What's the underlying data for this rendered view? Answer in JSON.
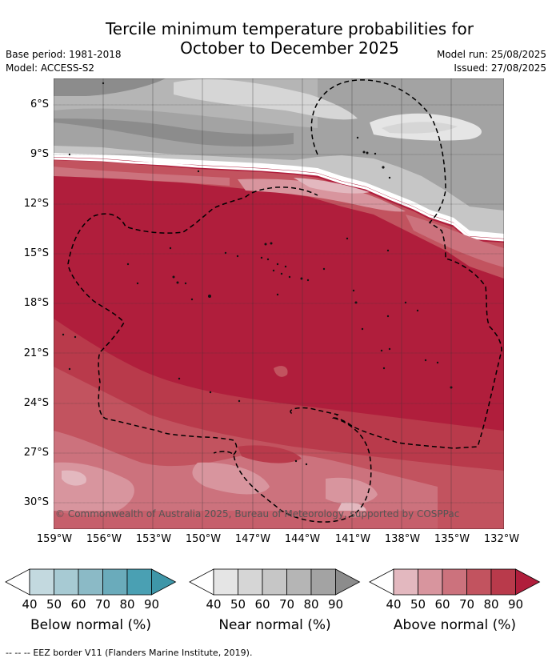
{
  "header": {
    "title_line1": "Tercile minimum temperature probabilities for",
    "title_line2": "October to December 2025",
    "base_period": "Base period: 1981-2018",
    "model": "Model: ACCESS-S2",
    "model_run": "Model run: 25/08/2025",
    "issued": "Issued: 27/08/2025"
  },
  "map": {
    "lat_labels": [
      "6°S",
      "9°S",
      "12°S",
      "15°S",
      "18°S",
      "21°S",
      "24°S",
      "27°S",
      "30°S"
    ],
    "lon_labels": [
      "159°W",
      "156°W",
      "153°W",
      "150°W",
      "147°W",
      "144°W",
      "141°W",
      "138°W",
      "135°W",
      "132°W"
    ],
    "copyright": "© Commonwealth of Australia 2025, Bureau of Meteorology, supported by COSPPac"
  },
  "legends": [
    {
      "title": "Below normal (%)",
      "ticks": [
        "40",
        "50",
        "60",
        "70",
        "80",
        "90"
      ],
      "colors": [
        "#ffffff",
        "#c3d9df",
        "#a7cad3",
        "#8bbac6",
        "#6aabbb",
        "#4aa0b3",
        "#3e96a8"
      ]
    },
    {
      "title": "Near normal (%)",
      "ticks": [
        "40",
        "50",
        "60",
        "70",
        "80",
        "90"
      ],
      "colors": [
        "#ffffff",
        "#e5e5e5",
        "#d6d6d6",
        "#c6c6c6",
        "#b5b5b5",
        "#a3a3a3",
        "#8c8c8c"
      ]
    },
    {
      "title": "Above normal (%)",
      "ticks": [
        "40",
        "50",
        "60",
        "70",
        "80",
        "90"
      ],
      "colors": [
        "#ffffff",
        "#e3b8bf",
        "#d8959e",
        "#cc727d",
        "#c2535f",
        "#b93a4b",
        "#b01e3c"
      ]
    }
  ],
  "footer": {
    "dash_symbol": "-- -- --",
    "text": "EEZ border V11 (Flanders Marine Institute, 2019)."
  }
}
